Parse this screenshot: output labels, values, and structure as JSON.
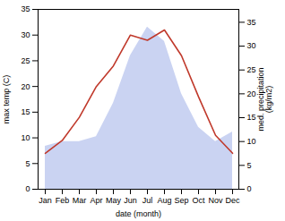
{
  "chart_data": {
    "type": "line",
    "xlabel": "date (month)",
    "ylabel": "max temp (C)",
    "y2label": "med. precipitation\n(kg/m2)",
    "categories": [
      "Jan",
      "Feb",
      "Mar",
      "Apr",
      "May",
      "Jun",
      "Jul",
      "Aug",
      "Sep",
      "Oct",
      "Nov",
      "Dec"
    ],
    "series": [
      {
        "type": "area",
        "axis": "y2",
        "color": "#b8c4ee",
        "values": [
          9,
          10,
          10,
          11,
          18,
          28,
          34,
          31,
          20,
          13,
          10,
          12
        ]
      },
      {
        "type": "line",
        "color": "#c0392b",
        "values": [
          7,
          9.5,
          14,
          20,
          24,
          30,
          29,
          31,
          26,
          18,
          10.5,
          7
        ]
      }
    ],
    "ylim": [
      0,
      35
    ],
    "yticks": [
      0,
      5,
      10,
      15,
      20,
      25,
      30,
      35
    ],
    "y2lim": [
      0,
      37.7
    ],
    "y2ticks": [
      0,
      5,
      10,
      15,
      20,
      25,
      30,
      35
    ],
    "grid": false
  }
}
